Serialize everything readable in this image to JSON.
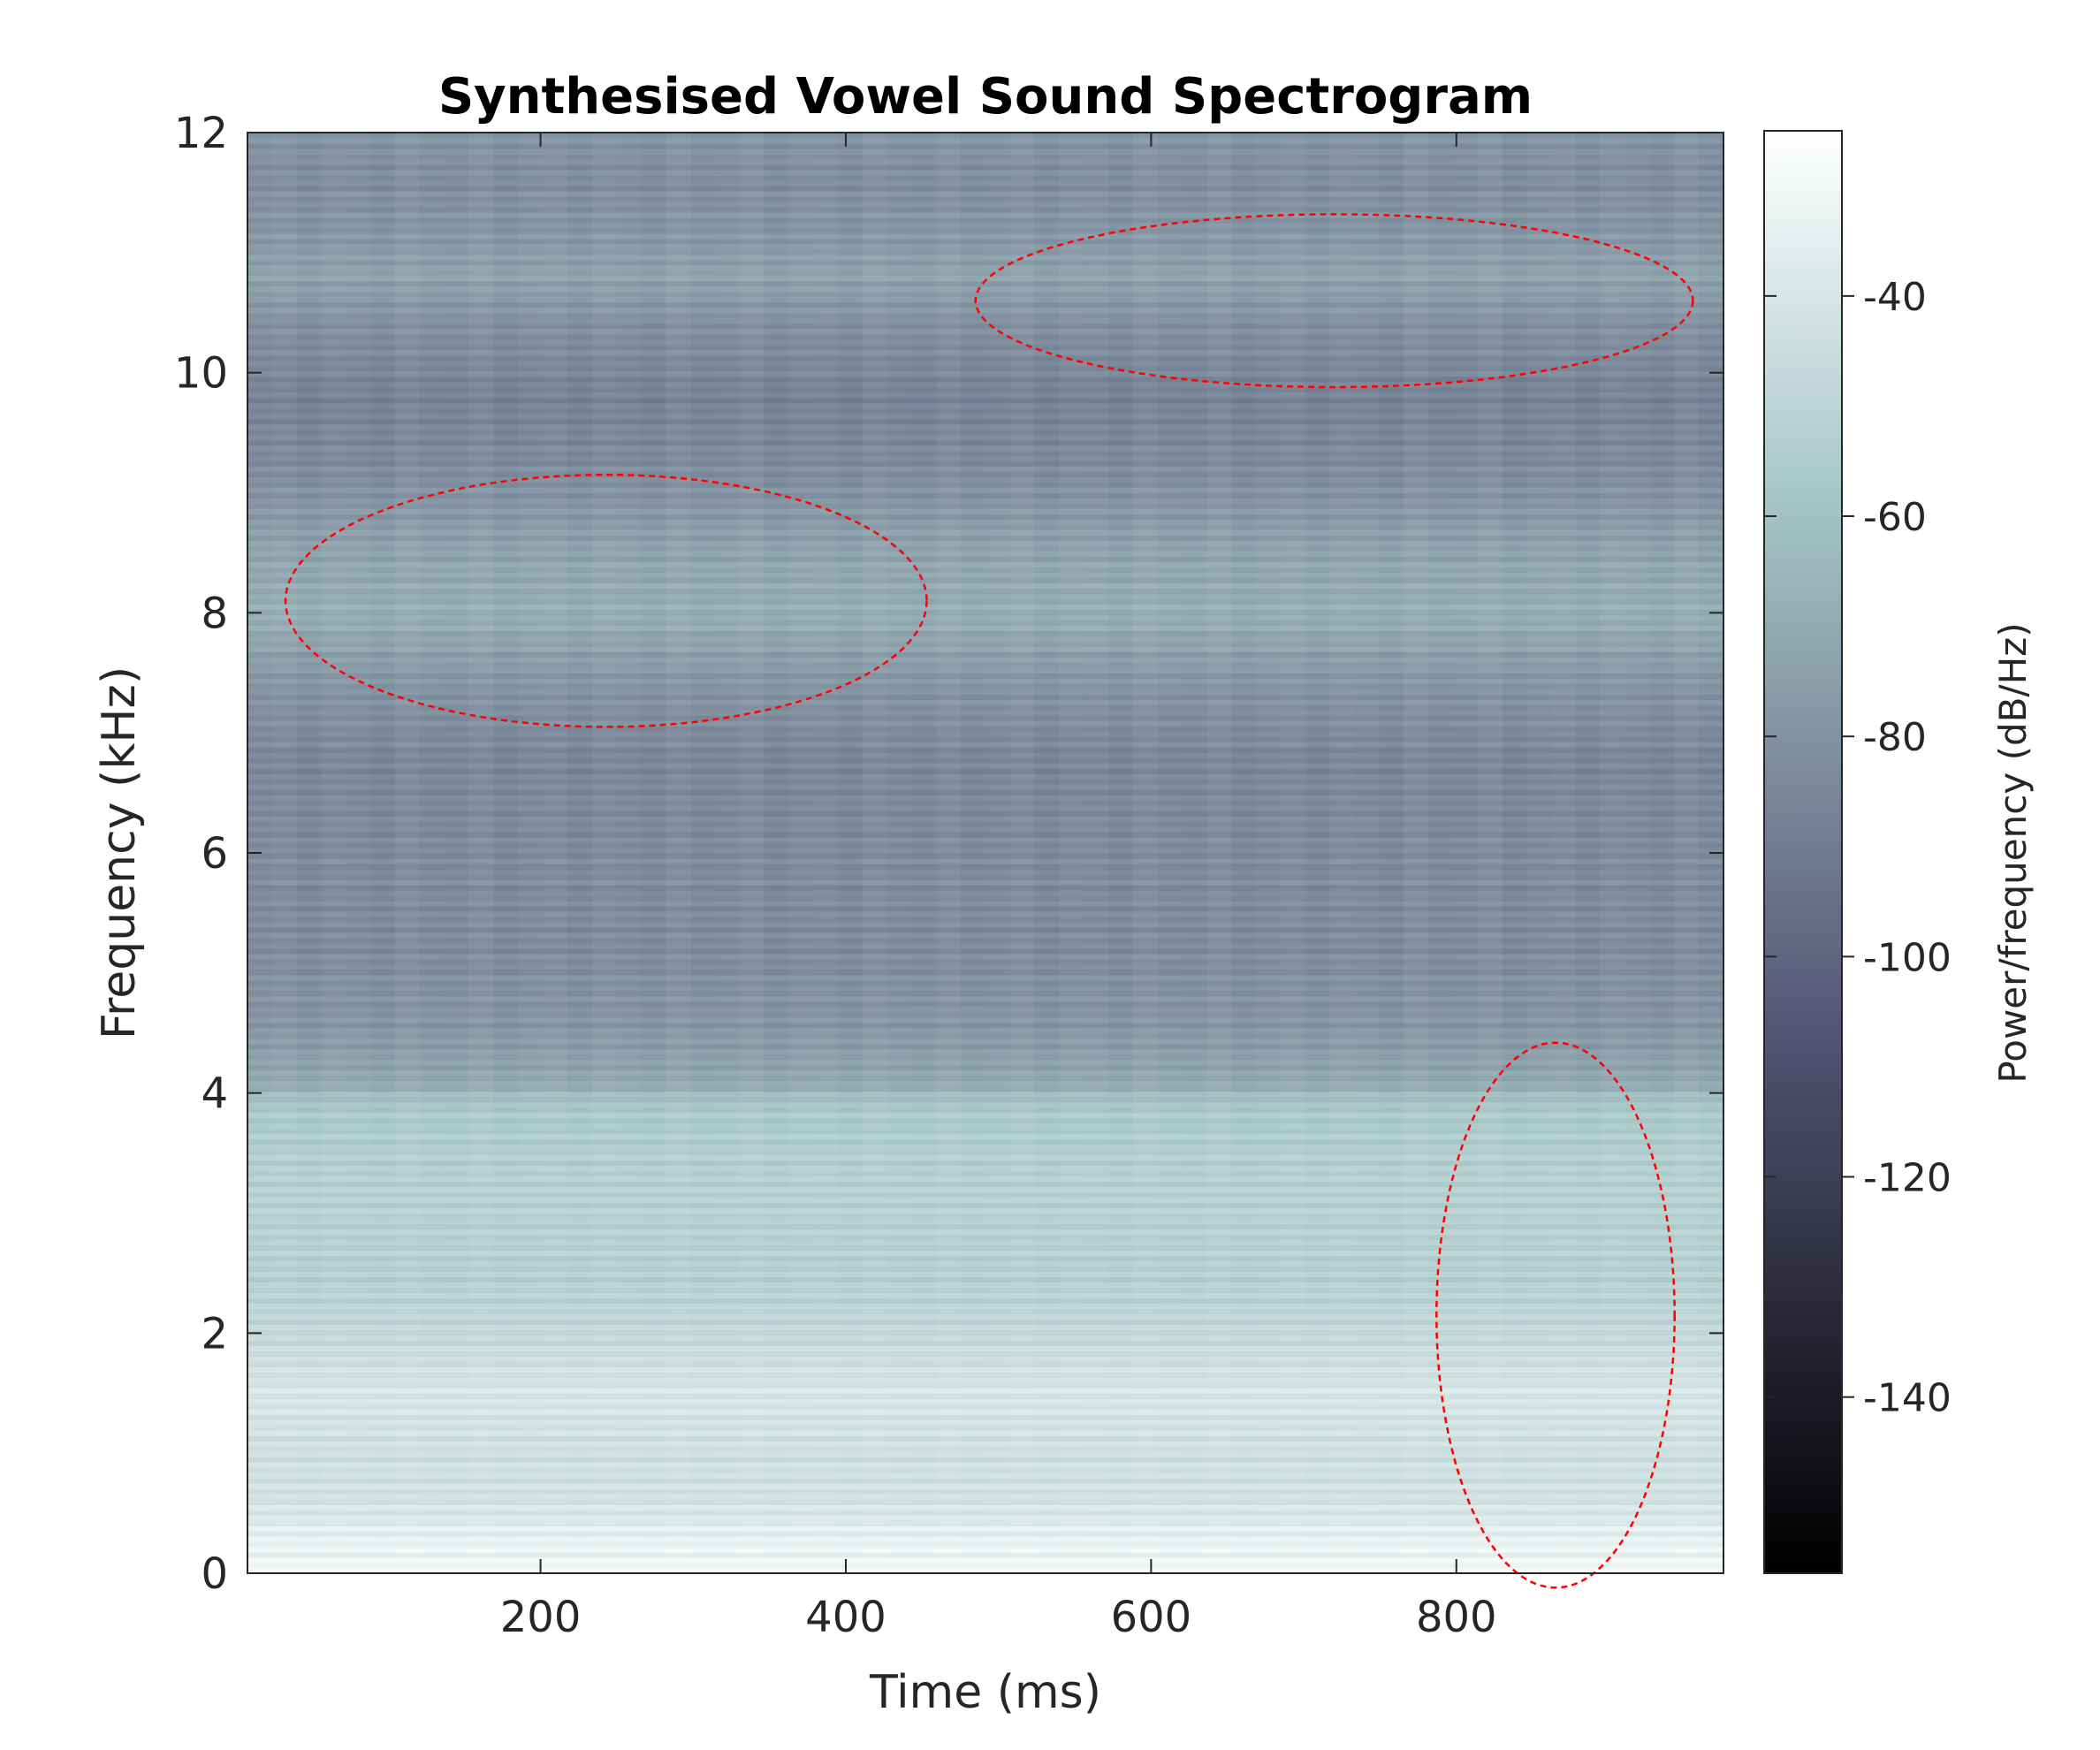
{
  "chart_data": {
    "type": "heatmap",
    "title": "Synthesised Vowel Sound Spectrogram",
    "xlabel": "Time (ms)",
    "ylabel": "Frequency (kHz)",
    "xlim": [
      8,
      975
    ],
    "ylim": [
      0,
      12
    ],
    "xticks": [
      200,
      400,
      600,
      800
    ],
    "yticks": [
      0,
      2,
      4,
      6,
      8,
      10,
      12
    ],
    "colorbar": {
      "label": "Power/frequency (dB/Hz)",
      "range": [
        -156,
        -25
      ],
      "ticks": [
        -40,
        -60,
        -80,
        -100,
        -120,
        -140
      ],
      "colormap": "bone"
    },
    "frequency_profile": {
      "freq_khz": [
        0,
        0.25,
        0.6,
        1.0,
        1.5,
        2.0,
        2.5,
        3.0,
        3.5,
        3.9,
        4.1,
        4.6,
        5.2,
        6.0,
        6.8,
        7.4,
        8.0,
        8.6,
        9.2,
        9.8,
        10.4,
        10.8,
        11.2,
        11.6,
        12.0
      ],
      "power_db": [
        -30,
        -33,
        -42,
        -44,
        -40,
        -48,
        -53,
        -52,
        -54,
        -58,
        -72,
        -80,
        -84,
        -84,
        -86,
        -80,
        -69,
        -75,
        -84,
        -88,
        -82,
        -74,
        -80,
        -83,
        -80
      ]
    },
    "annotations": [
      {
        "shape": "ellipse",
        "center": [
          243,
          8.1
        ],
        "radii": [
          210,
          1.05
        ],
        "style": "dashed",
        "color": "#ff0000"
      },
      {
        "shape": "ellipse",
        "center": [
          720,
          10.6
        ],
        "radii": [
          235,
          0.72
        ],
        "style": "dashed",
        "color": "#ff0000"
      },
      {
        "shape": "ellipse",
        "center": [
          865,
          2.15
        ],
        "radii": [
          78,
          2.27
        ],
        "style": "dashed",
        "color": "#ff0000"
      }
    ]
  }
}
